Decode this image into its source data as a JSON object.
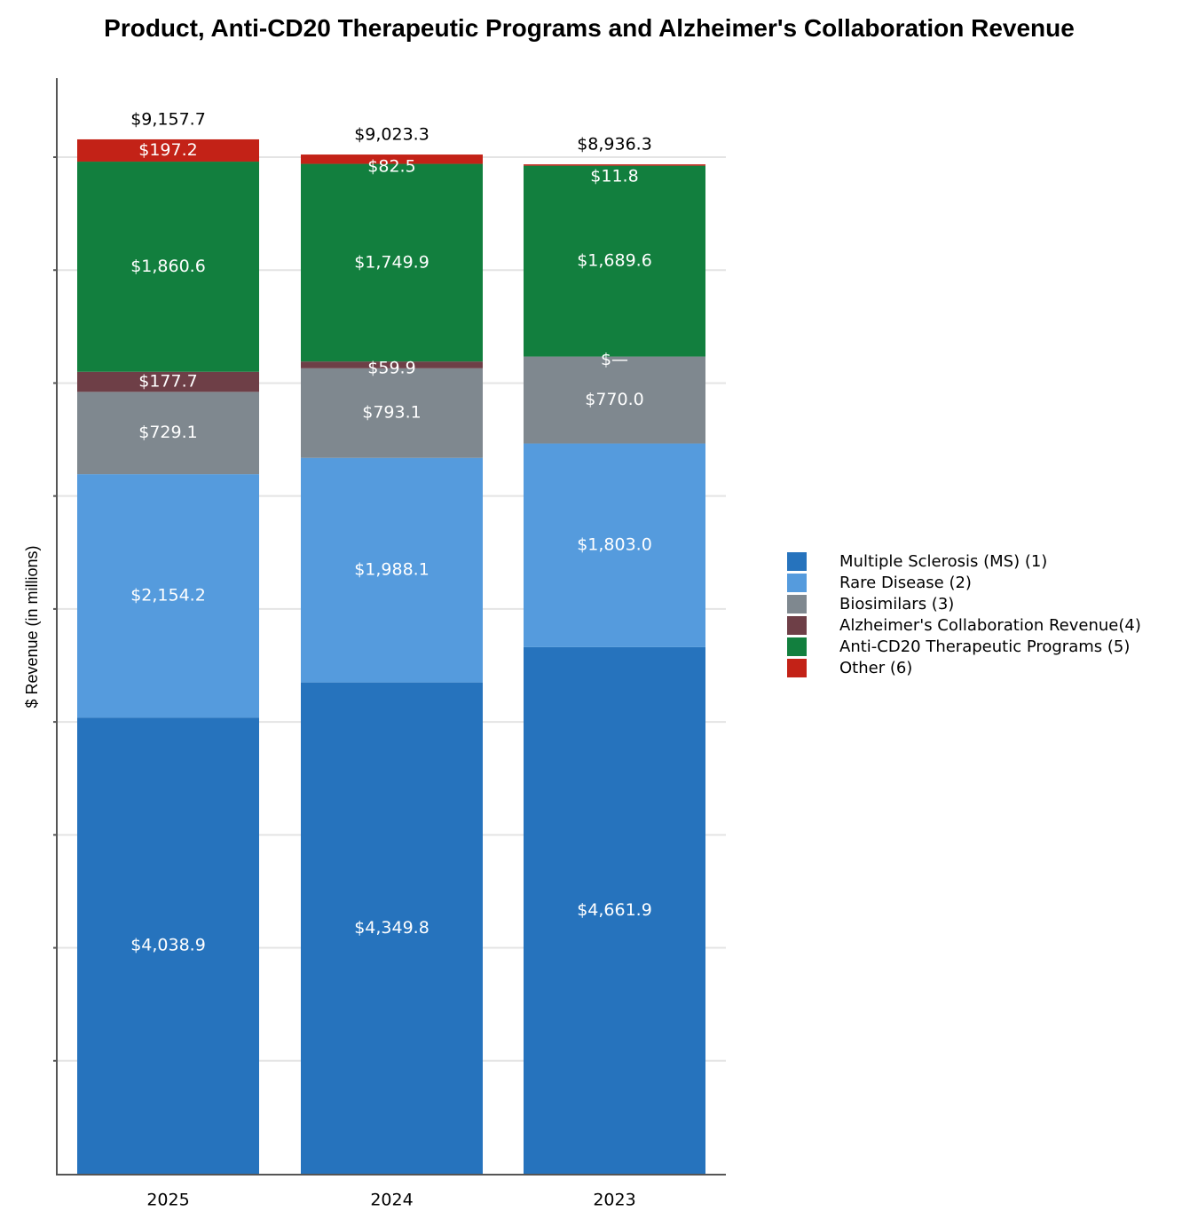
{
  "chart_data": {
    "type": "bar",
    "stacked": true,
    "title": "Product, Anti-CD20 Therapeutic Programs and Alzheimer's Collaboration Revenue",
    "ylabel": "$ Revenue (in millions)",
    "xlabel": "",
    "categories": [
      "2025",
      "2024",
      "2023"
    ],
    "ylim": [
      0,
      9684
    ],
    "grid": true,
    "legend_position": "right",
    "series": [
      {
        "name": "Multiple Sclerosis (MS) (1)",
        "color": "#2673bd",
        "values": [
          4038.9,
          4349.8,
          4661.9
        ],
        "labels": [
          "$4,038.9",
          "$4,349.8",
          "$4,661.9"
        ]
      },
      {
        "name": "Rare Disease (2)",
        "color": "#559bdd",
        "values": [
          2154.2,
          1988.1,
          1803.0
        ],
        "labels": [
          "$2,154.2",
          "$1,988.1",
          "$1,803.0"
        ]
      },
      {
        "name": "Biosimilars (3)",
        "color": "#7f888f",
        "values": [
          729.1,
          793.1,
          770.0
        ],
        "labels": [
          "$729.1",
          "$793.1",
          "$770.0"
        ]
      },
      {
        "name": "Alzheimer's Collaboration Revenue(4)",
        "color": "#6e3f47",
        "values": [
          177.7,
          59.9,
          0
        ],
        "labels": [
          "$177.7",
          "$59.9",
          "$—"
        ]
      },
      {
        "name": "Anti-CD20 Therapeutic Programs (5)",
        "color": "#127f3e",
        "values": [
          1860.6,
          1749.9,
          1689.6
        ],
        "labels": [
          "$1,860.6",
          "$1,749.9",
          "$1,689.6"
        ]
      },
      {
        "name": "Other (6)",
        "color": "#c32217",
        "values": [
          197.2,
          82.5,
          11.8
        ],
        "labels": [
          "$197.2",
          "$82.5",
          "$11.8"
        ]
      }
    ],
    "totals": [
      "$9,157.7",
      "$9,023.3",
      "$8,936.3"
    ]
  }
}
